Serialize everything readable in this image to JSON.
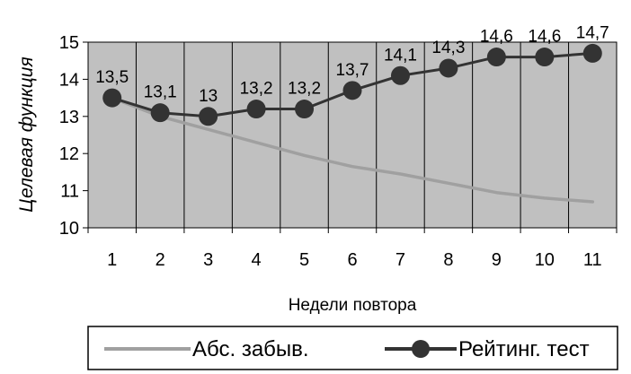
{
  "chart_data": {
    "type": "line",
    "xlabel": "Недели повтора",
    "ylabel": "Целевая функция",
    "x": [
      1,
      2,
      3,
      4,
      5,
      6,
      7,
      8,
      9,
      10,
      11
    ],
    "ylim": [
      10,
      15
    ],
    "yticks": [
      10,
      11,
      12,
      13,
      14,
      15
    ],
    "grid": "vertical",
    "plot_background": "#c0c0c0",
    "legend_position": "bottom",
    "series": [
      {
        "name": "Абс. забыв.",
        "color": "#a0a0a0",
        "marker": "none",
        "values": [
          13.5,
          13.0,
          12.65,
          12.3,
          11.95,
          11.65,
          11.45,
          11.2,
          10.95,
          10.8,
          10.7
        ]
      },
      {
        "name": "Рейтинг. тест",
        "color": "#333333",
        "marker": "circle",
        "values": [
          13.5,
          13.1,
          13.0,
          13.2,
          13.2,
          13.7,
          14.1,
          14.3,
          14.6,
          14.6,
          14.7
        ],
        "labels": [
          "13,5",
          "13,1",
          "13",
          "13,2",
          "13,2",
          "13,7",
          "14,1",
          "14,3",
          "14,6",
          "14,6",
          "14,7"
        ]
      }
    ]
  }
}
